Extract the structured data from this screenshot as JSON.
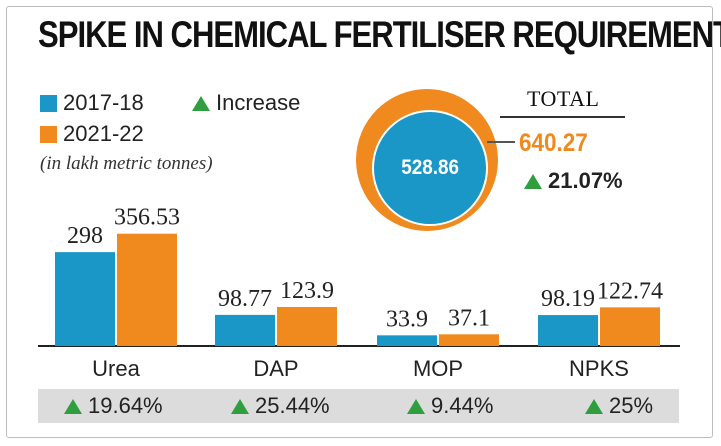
{
  "title": "SPIKE IN CHEMICAL FERTILISER REQUIREMENT",
  "legend": {
    "series_a": "2017-18",
    "series_b": "2021-22",
    "increase": "Increase",
    "note": "(in lakh metric tonnes)"
  },
  "total": {
    "label": "TOTAL",
    "value_2017": "528.86",
    "value_2021": "640.27",
    "change": "21.07%"
  },
  "colors": {
    "series_a": "#1a97c6",
    "series_b": "#f08a1e",
    "increase": "#2e9e3e"
  },
  "chart_data": {
    "type": "bar",
    "title": "SPIKE IN CHEMICAL FERTILISER REQUIREMENT",
    "categories": [
      "Urea",
      "DAP",
      "MOP",
      "NPKS"
    ],
    "series": [
      {
        "name": "2017-18",
        "values": [
          298,
          98.77,
          33.9,
          98.19
        ],
        "labels": [
          "298",
          "98.77",
          "33.9",
          "98.19"
        ]
      },
      {
        "name": "2021-22",
        "values": [
          356.53,
          123.9,
          37.1,
          122.74
        ],
        "labels": [
          "356.53",
          "123.9",
          "37.1",
          "122.74"
        ]
      }
    ],
    "changes": [
      "19.64%",
      "25.44%",
      "9.44%",
      "25%"
    ],
    "ylim": [
      0,
      400
    ],
    "grid": false,
    "legend_position": "top-left"
  }
}
